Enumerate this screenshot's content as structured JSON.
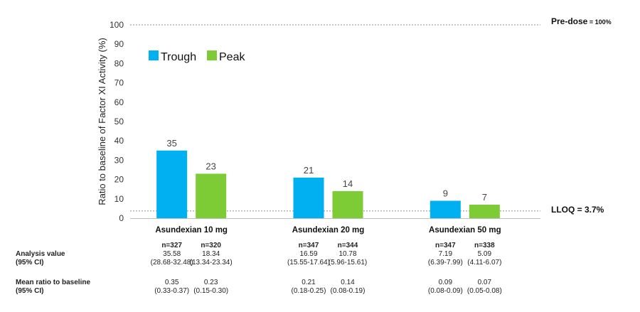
{
  "chart_data": {
    "type": "bar",
    "ylabel": "Ratio to baseline of Factor XI Activity (%)",
    "ylim": [
      0,
      100
    ],
    "yticks": [
      0,
      10,
      20,
      30,
      40,
      50,
      60,
      70,
      80,
      90,
      100
    ],
    "categories": [
      "Asundexian 10 mg",
      "Asundexian 20 mg",
      "Asundexian 50 mg"
    ],
    "series": [
      {
        "name": "Trough",
        "color": "#00B0F0",
        "values": [
          35,
          21,
          9
        ]
      },
      {
        "name": "Peak",
        "color": "#7DCB35",
        "values": [
          23,
          14,
          7
        ]
      }
    ],
    "legend": "top-left",
    "reference_lines": [
      {
        "value": 100,
        "label_bold": "Pre-dose",
        "label_rest": " = 100%"
      },
      {
        "value": 3.7,
        "label_bold": "LLOQ = 3.7%",
        "label_rest": ""
      }
    ]
  },
  "table": {
    "row1_label": [
      "Analysis value",
      "(95% CI)"
    ],
    "row2_label": [
      "Mean ratio to baseline",
      "(95% CI)"
    ],
    "cells": [
      {
        "n": "n=327",
        "value": "35.58",
        "ci": "(28.68-32.48)",
        "ratio": "0.35",
        "ratio_ci": "(0.33-0.37)"
      },
      {
        "n": "n=320",
        "value": "18.34",
        "ci": "(13.34-23.34)",
        "ratio": "0.23",
        "ratio_ci": "(0.15-0.30)"
      },
      {
        "n": "n=347",
        "value": "16.59",
        "ci": "(15.55-17.64)",
        "ratio": "0.21",
        "ratio_ci": "(0.18-0.25)"
      },
      {
        "n": "n=344",
        "value": "10.78",
        "ci": "(5.96-15.61)",
        "ratio": "0.14",
        "ratio_ci": "(0.08-0.19)"
      },
      {
        "n": "n=347",
        "value": "7.19",
        "ci": "(6.39-7.99)",
        "ratio": "0.09",
        "ratio_ci": "(0.08-0.09)"
      },
      {
        "n": "n=338",
        "value": "5.09",
        "ci": "(4.11-6.07)",
        "ratio": "0.07",
        "ratio_ci": "(0.05-0.08)"
      }
    ]
  }
}
